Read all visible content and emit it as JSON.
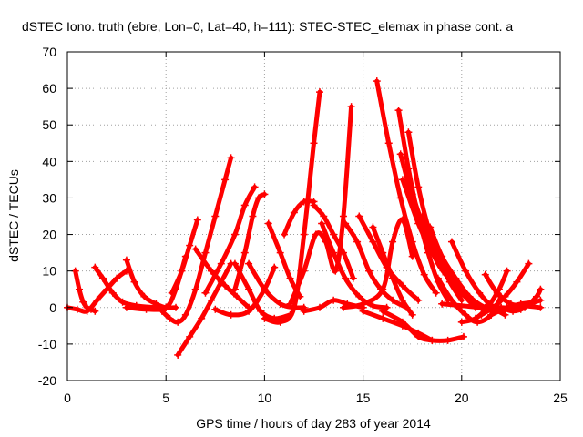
{
  "chart_data": {
    "type": "scatter",
    "title": "dSTEC Iono. truth (ebre, Lon=0, Lat=40, h=111): STEC-STEC_elemax in phase cont. a",
    "xlabel": "GPS time / hours of day 283 of year 2014",
    "ylabel": "dSTEC  / TECUs",
    "xlim": [
      0,
      25
    ],
    "ylim": [
      -20,
      70
    ],
    "xticks": [
      0,
      5,
      10,
      15,
      20,
      25
    ],
    "yticks": [
      -20,
      -10,
      0,
      10,
      20,
      30,
      40,
      50,
      60,
      70
    ],
    "grid": true,
    "marker": "+",
    "color": "#ff0000",
    "series": [
      {
        "x": [
          0.4,
          0.6,
          0.8,
          1.0,
          1.2,
          1.4
        ],
        "y": [
          10,
          5,
          1.5,
          0,
          -0.5,
          -1
        ]
      },
      {
        "x": [
          0.0,
          0.5,
          1.0,
          1.5,
          2.0,
          2.5,
          3.0
        ],
        "y": [
          0,
          -0.5,
          -1,
          2,
          5,
          8,
          10
        ]
      },
      {
        "x": [
          1.4,
          1.8,
          2.3,
          2.8,
          3.5,
          4.5
        ],
        "y": [
          11,
          8,
          4,
          1.5,
          0.5,
          0
        ]
      },
      {
        "x": [
          3.0,
          3.4,
          3.9,
          4.5,
          5.0,
          5.5
        ],
        "y": [
          13,
          7,
          3,
          1,
          0,
          0
        ]
      },
      {
        "x": [
          4.8,
          5.2,
          5.6,
          6.0,
          6.5,
          7.0,
          7.5,
          8.0,
          8.3
        ],
        "y": [
          -1,
          -3,
          -4,
          -2,
          5,
          15,
          25,
          35,
          41
        ]
      },
      {
        "x": [
          3.0,
          4.0,
          5.0,
          5.5,
          6.0
        ],
        "y": [
          0,
          -0.5,
          0,
          5,
          14
        ]
      },
      {
        "x": [
          5.6,
          6.2,
          6.8,
          7.3,
          7.8,
          8.3
        ],
        "y": [
          -13,
          -8,
          -3,
          2,
          7,
          12
        ]
      },
      {
        "x": [
          5.3,
          5.8,
          6.2,
          6.6
        ],
        "y": [
          4,
          10,
          17,
          24
        ]
      },
      {
        "x": [
          6.5,
          7.3,
          8.0,
          8.6,
          9.2
        ],
        "y": [
          16,
          10,
          6,
          3,
          0
        ]
      },
      {
        "x": [
          7.0,
          7.8,
          8.5,
          9.0,
          9.5
        ],
        "y": [
          4,
          12,
          20,
          28,
          33
        ]
      },
      {
        "x": [
          7.5,
          8.3,
          9.2,
          10.0,
          10.5
        ],
        "y": [
          -0.5,
          -2,
          -1,
          5,
          11
        ]
      },
      {
        "x": [
          8.5,
          9.0,
          9.4,
          9.7,
          10.0
        ],
        "y": [
          5,
          15,
          25,
          30,
          31
        ]
      },
      {
        "x": [
          8.5,
          9.2,
          9.8,
          10.5,
          11.3
        ],
        "y": [
          12,
          5,
          -1,
          -3,
          -2
        ]
      },
      {
        "x": [
          9.2,
          10.0,
          10.8,
          11.5,
          12.0
        ],
        "y": [
          12,
          5,
          1,
          0,
          0
        ]
      },
      {
        "x": [
          10.2,
          10.8,
          11.3,
          11.8
        ],
        "y": [
          23,
          15,
          8,
          3
        ]
      },
      {
        "x": [
          10.0,
          10.8,
          11.5,
          12.0,
          12.5,
          12.8
        ],
        "y": [
          -3,
          -4,
          0,
          20,
          45,
          59
        ]
      },
      {
        "x": [
          11.0,
          11.5,
          12.0,
          12.5
        ],
        "y": [
          20,
          26,
          29,
          29
        ]
      },
      {
        "x": [
          11.3,
          12.0,
          12.6,
          13.1,
          13.6,
          14.0,
          14.4
        ],
        "y": [
          1,
          10,
          20,
          18,
          10,
          25,
          55
        ]
      },
      {
        "x": [
          12.0,
          12.8,
          13.5,
          14.2,
          15.0
        ],
        "y": [
          -1,
          0,
          2,
          1,
          0
        ]
      },
      {
        "x": [
          12.5,
          13.0,
          13.5,
          14.0,
          14.5
        ],
        "y": [
          28,
          25,
          20,
          15,
          8
        ]
      },
      {
        "x": [
          12.9,
          13.5,
          14.1,
          14.8,
          15.5,
          16.2
        ],
        "y": [
          23,
          15,
          8,
          3,
          0.5,
          0
        ]
      },
      {
        "x": [
          14.1,
          14.7,
          15.3,
          15.9,
          16.5,
          17.2
        ],
        "y": [
          23,
          18,
          10,
          5,
          2,
          0
        ]
      },
      {
        "x": [
          14.8,
          15.5,
          16.2,
          17.0,
          17.8
        ],
        "y": [
          25,
          18,
          11,
          6,
          2
        ]
      },
      {
        "x": [
          15.5,
          16.0,
          16.5,
          17.0,
          17.5
        ],
        "y": [
          22,
          15,
          8,
          2,
          -2
        ]
      },
      {
        "x": [
          14.0,
          15.0,
          16.0,
          16.5,
          17.0,
          17.5
        ],
        "y": [
          0,
          1,
          5,
          18,
          24,
          14
        ]
      },
      {
        "x": [
          15.7,
          16.3,
          16.9,
          17.5,
          18.1,
          18.7
        ],
        "y": [
          62,
          45,
          30,
          18,
          9,
          4
        ]
      },
      {
        "x": [
          16.8,
          17.3,
          17.8,
          18.3,
          18.8,
          19.3
        ],
        "y": [
          54,
          38,
          25,
          15,
          7,
          2
        ]
      },
      {
        "x": [
          17.3,
          17.8,
          18.3,
          18.8,
          19.4,
          20.0
        ],
        "y": [
          48,
          33,
          22,
          14,
          7,
          2
        ]
      },
      {
        "x": [
          16.9,
          17.6,
          18.3,
          19.0,
          19.8,
          20.4
        ],
        "y": [
          42,
          28,
          18,
          11,
          6,
          2
        ]
      },
      {
        "x": [
          17.0,
          17.8,
          18.5,
          19.2,
          20.0,
          20.7
        ],
        "y": [
          35,
          23,
          15,
          9,
          4,
          0
        ]
      },
      {
        "x": [
          17.5,
          18.2,
          18.8,
          19.5,
          20.2,
          21.0
        ],
        "y": [
          31,
          20,
          12,
          7,
          3,
          0
        ]
      },
      {
        "x": [
          18.0,
          18.7,
          19.3,
          20.0,
          20.8,
          21.5
        ],
        "y": [
          25,
          16,
          10,
          5,
          1,
          -1
        ]
      },
      {
        "x": [
          18.4,
          19.0,
          19.7,
          20.4,
          21.2,
          22.0
        ],
        "y": [
          22,
          14,
          8,
          3,
          0,
          -1
        ]
      },
      {
        "x": [
          16.0,
          17.0,
          17.8,
          18.5,
          19.3,
          20.1
        ],
        "y": [
          -1,
          -4,
          -8,
          -9,
          -9,
          -8
        ]
      },
      {
        "x": [
          15.0,
          16.0,
          17.0,
          17.8,
          18.5
        ],
        "y": [
          -1,
          -3,
          -5,
          -7,
          -9
        ]
      },
      {
        "x": [
          18.8,
          19.5,
          20.2,
          20.8,
          21.5,
          22.0
        ],
        "y": [
          8,
          2,
          -2,
          -4,
          -2,
          3
        ]
      },
      {
        "x": [
          19.5,
          20.2,
          20.9,
          21.6,
          22.2
        ],
        "y": [
          18,
          10,
          4,
          0,
          -2
        ]
      },
      {
        "x": [
          20.0,
          20.7,
          21.3,
          21.9,
          22.3
        ],
        "y": [
          -4,
          -3,
          0,
          5,
          10
        ]
      },
      {
        "x": [
          21.0,
          21.6,
          22.2,
          22.8,
          23.4
        ],
        "y": [
          -2,
          0,
          3,
          7,
          12
        ]
      },
      {
        "x": [
          21.2,
          21.8,
          22.5,
          23.2,
          24.0
        ],
        "y": [
          9,
          4,
          1,
          0.5,
          0
        ]
      },
      {
        "x": [
          22.0,
          22.6,
          23.2,
          23.8,
          24.0
        ],
        "y": [
          0,
          -1,
          0,
          3,
          5
        ]
      },
      {
        "x": [
          21.5,
          22.3,
          23.0,
          23.7,
          24.0
        ],
        "y": [
          -2,
          0,
          1,
          1.5,
          2
        ]
      },
      {
        "x": [
          19.0,
          20.0,
          21.0,
          22.0,
          23.0
        ],
        "y": [
          1,
          0.5,
          0,
          0,
          -0.5
        ]
      }
    ]
  }
}
